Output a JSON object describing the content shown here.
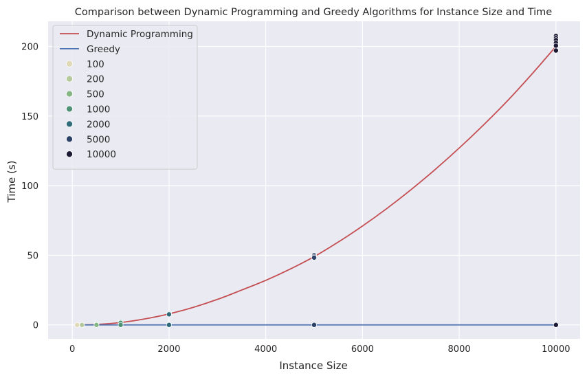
{
  "chart_data": {
    "type": "line",
    "title": "Comparison between Dynamic Programming and Greedy Algorithms for Instance Size and Time",
    "xlabel": "Instance Size",
    "ylabel": "Time (s)",
    "xlim": [
      -500,
      10500
    ],
    "ylim": [
      -10,
      218
    ],
    "xticks": [
      0,
      2000,
      4000,
      6000,
      8000,
      10000
    ],
    "yticks": [
      0,
      50,
      100,
      150,
      200
    ],
    "grid": true,
    "legend_position": "top-left",
    "series": [
      {
        "name": "Dynamic Programming",
        "type": "line",
        "color": "#c44e52",
        "x": [
          100,
          500,
          1000,
          1500,
          2000,
          2500,
          3000,
          3500,
          4000,
          4500,
          5000,
          5500,
          6000,
          6500,
          7000,
          7500,
          8000,
          8500,
          9000,
          9500,
          10000
        ],
        "y": [
          0,
          0.3,
          1.7,
          4.3,
          7.9,
          12.6,
          18.3,
          25.0,
          32.0,
          40.0,
          49.0,
          59.5,
          71.0,
          83.5,
          97.0,
          111.5,
          127.0,
          143.5,
          161.0,
          180.0,
          200.0
        ]
      },
      {
        "name": "Greedy",
        "type": "line",
        "color": "#4c72b0",
        "x": [
          100,
          10000
        ],
        "y": [
          0,
          0
        ]
      }
    ],
    "scatter": [
      {
        "name": "100",
        "color": "#dfd9b6",
        "x": [
          100,
          100,
          100
        ],
        "y": [
          0,
          0,
          0
        ]
      },
      {
        "name": "200",
        "color": "#b5c99a",
        "x": [
          200,
          200
        ],
        "y": [
          0.1,
          0
        ]
      },
      {
        "name": "500",
        "color": "#84b582",
        "x": [
          500,
          500
        ],
        "y": [
          0.4,
          0
        ]
      },
      {
        "name": "1000",
        "color": "#4f9174",
        "x": [
          1000,
          1000,
          1000
        ],
        "y": [
          2.0,
          1.5,
          0
        ]
      },
      {
        "name": "2000",
        "color": "#2f6b79",
        "x": [
          2000,
          2000,
          2000
        ],
        "y": [
          8.0,
          7.6,
          0
        ]
      },
      {
        "name": "5000",
        "color": "#2b4167",
        "x": [
          5000,
          5000,
          5000,
          5000
        ],
        "y": [
          50.0,
          49.0,
          48.3,
          0
        ]
      },
      {
        "name": "10000",
        "color": "#1a1a35",
        "x": [
          10000,
          10000,
          10000,
          10000,
          10000,
          10000,
          10000
        ],
        "y": [
          207.5,
          206.0,
          204.5,
          202.5,
          200.5,
          197.0,
          0
        ]
      }
    ]
  }
}
